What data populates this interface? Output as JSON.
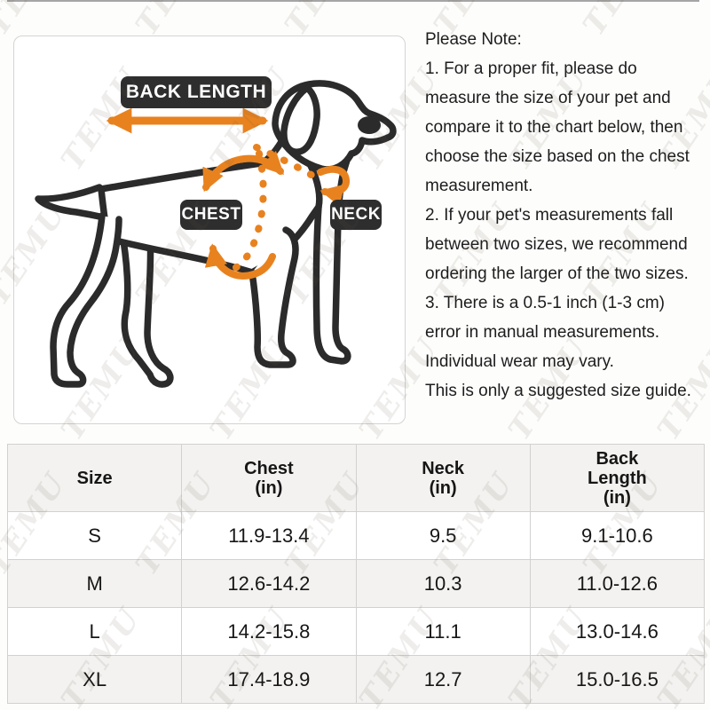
{
  "watermark": {
    "text": "TEMU"
  },
  "diagram": {
    "labels": {
      "back_length": "BACK LENGTH",
      "chest": "CHEST",
      "neck": "NECK"
    },
    "colors": {
      "arrow": "#E8821F",
      "label_bg": "#2E2E2E",
      "label_text": "#FFFFFF",
      "outline": "#2B2B2B"
    }
  },
  "note": {
    "lines": [
      "Please Note:",
      "1. For a proper fit, please do",
      "measure the size of your pet and",
      "compare it to the chart below, then",
      "choose the size based on the chest",
      "measurement.",
      "2. If your pet's measurements fall",
      "between two sizes, we recommend",
      "ordering the larger of the two sizes.",
      "3. There is a 0.5-1 inch (1-3 cm)",
      "error in manual measurements.",
      "Individual wear may vary.",
      "This is only a suggested size guide."
    ]
  },
  "size_table": {
    "columns": [
      [
        "Size"
      ],
      [
        "Chest",
        "(in)"
      ],
      [
        "Neck",
        "(in)"
      ],
      [
        "Back",
        "Length",
        "(in)"
      ]
    ],
    "rows": [
      [
        "S",
        "11.9-13.4",
        "9.5",
        "9.1-10.6"
      ],
      [
        "M",
        "12.6-14.2",
        "10.3",
        "11.0-12.6"
      ],
      [
        "L",
        "14.2-15.8",
        "11.1",
        "13.0-14.6"
      ],
      [
        "XL",
        "17.4-18.9",
        "12.7",
        "15.0-16.5"
      ]
    ]
  }
}
